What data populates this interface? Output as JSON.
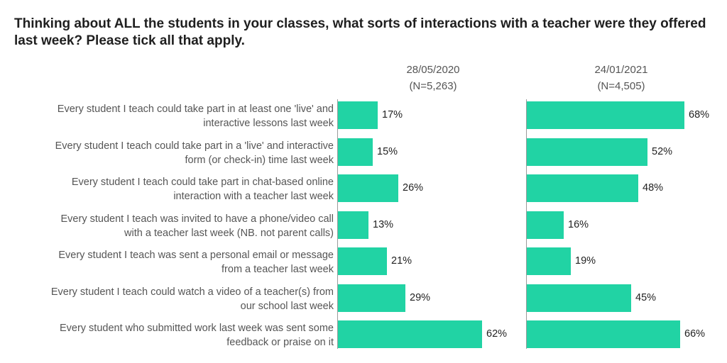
{
  "title": "Thinking about ALL the students in your classes, what sorts of interactions with a teacher were they offered last week? Please tick all that apply.",
  "chart_data": {
    "type": "bar",
    "orientation": "horizontal",
    "title": "Thinking about ALL the students in your classes, what sorts of interactions with a teacher were they offered last week? Please tick all that apply.",
    "categories": [
      [
        "Every student I teach could take part in at least one 'live' and",
        "interactive lessons last week"
      ],
      [
        "Every student I teach could take part in a 'live' and interactive",
        "form (or check-in) time last week"
      ],
      [
        "Every student I teach could take part in chat-based online",
        "interaction with a teacher last week"
      ],
      [
        "Every student I teach was invited to have a phone/video call",
        "with a teacher last week (NB. not parent calls)"
      ],
      [
        "Every student I teach was sent a personal email or message",
        "from a teacher last week"
      ],
      [
        "Every student I teach could watch a video of a teacher(s) from",
        "our school last week"
      ],
      [
        "Every student who submitted work last week was sent some",
        "feedback or praise on it"
      ]
    ],
    "series": [
      {
        "name": "28/05/2020",
        "subtitle": "(N=5,263)",
        "values": [
          17,
          15,
          26,
          13,
          21,
          29,
          62
        ],
        "labels": [
          "17%",
          "15%",
          "26%",
          "13%",
          "21%",
          "29%",
          "62%"
        ],
        "color": "#21d3a4"
      },
      {
        "name": "24/01/2021",
        "subtitle": "(N=4,505)",
        "values": [
          68,
          52,
          48,
          16,
          19,
          45,
          66
        ],
        "labels": [
          "68%",
          "52%",
          "48%",
          "16%",
          "19%",
          "45%",
          "66%"
        ],
        "color": "#21d3a4"
      }
    ],
    "unit": "%",
    "xlim": [
      0,
      100
    ],
    "grid": false,
    "legend": "none"
  }
}
